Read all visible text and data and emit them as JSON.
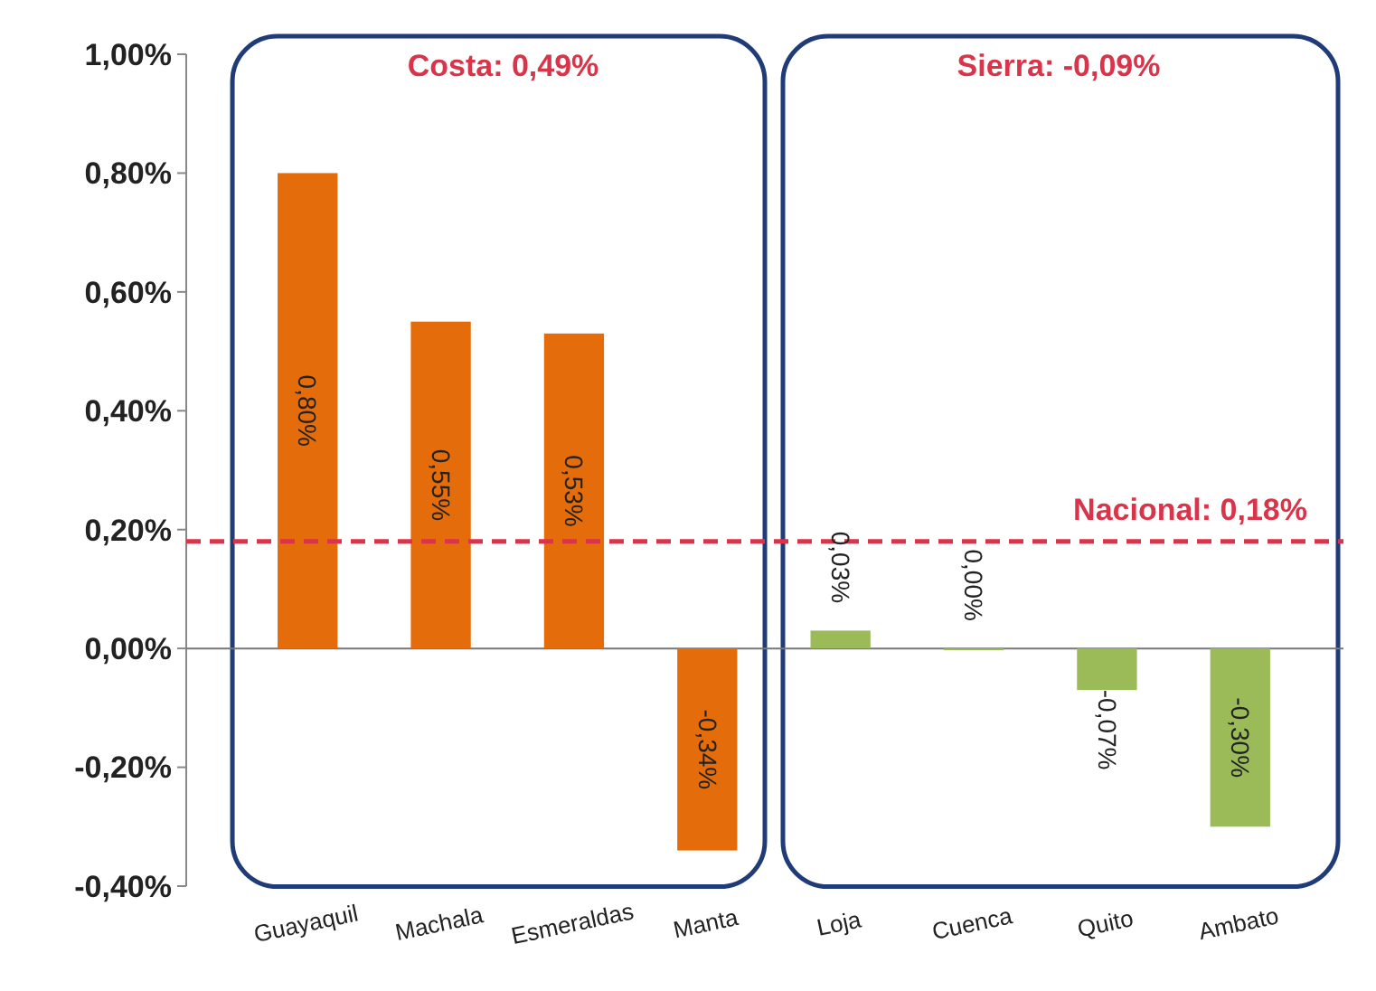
{
  "chart_data": {
    "type": "bar",
    "categories": [
      "Guayaquil",
      "Machala",
      "Esmeraldas",
      "Manta",
      "Loja",
      "Cuenca",
      "Quito",
      "Ambato"
    ],
    "values": [
      0.8,
      0.55,
      0.53,
      -0.34,
      0.03,
      0.0,
      -0.07,
      -0.3
    ],
    "colors": [
      "#e46c0a",
      "#e46c0a",
      "#e46c0a",
      "#e46c0a",
      "#9bbb59",
      "#9bbb59",
      "#9bbb59",
      "#9bbb59"
    ],
    "value_labels": [
      "0,80%",
      "0,55%",
      "0,53%",
      "-0,34%",
      "0,03%",
      "0,00%",
      "-0,07%",
      "-0,30%"
    ],
    "ylim": [
      -0.4,
      1.0
    ],
    "yticks": [
      {
        "value": -0.4,
        "label": "-0,40%"
      },
      {
        "value": -0.2,
        "label": "-0,20%"
      },
      {
        "value": 0,
        "label": "0,00%"
      },
      {
        "value": 0.2,
        "label": "0,20%"
      },
      {
        "value": 0.4,
        "label": "0,40%"
      },
      {
        "value": 0.6,
        "label": "0,60%"
      },
      {
        "value": 0.8,
        "label": "0,80%"
      },
      {
        "value": 1.0,
        "label": "1,00%"
      }
    ],
    "ref_lines": [
      {
        "axis": "y",
        "value": 0.18,
        "label": "Nacional: 0,18%",
        "color": "#d9344a",
        "line_style": "dashed"
      }
    ],
    "annotations": [
      "Costa: 0,49%",
      "Sierra: -0,09%"
    ]
  }
}
